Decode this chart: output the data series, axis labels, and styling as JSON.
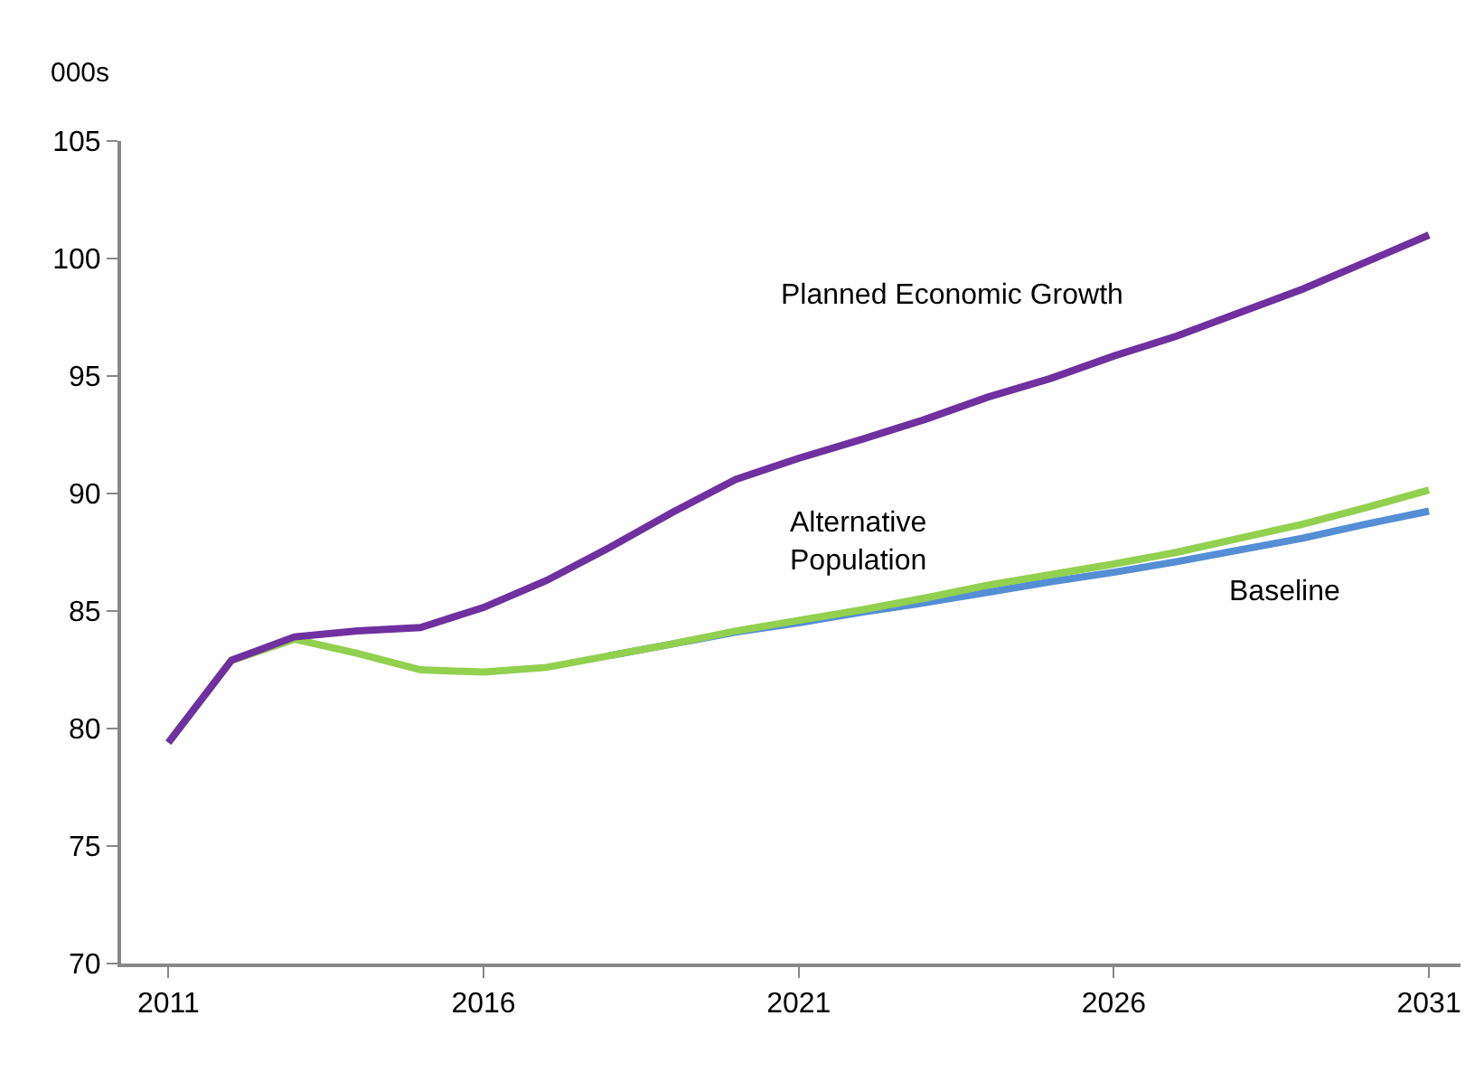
{
  "chart_data": {
    "type": "line",
    "ylabel": "000s",
    "x": [
      2011,
      2012,
      2013,
      2014,
      2015,
      2016,
      2017,
      2018,
      2019,
      2020,
      2021,
      2022,
      2023,
      2024,
      2025,
      2026,
      2027,
      2028,
      2029,
      2030,
      2031
    ],
    "series": [
      {
        "name": "Baseline",
        "color": "#558ed5",
        "values": [
          null,
          null,
          null,
          null,
          null,
          null,
          null,
          83.1,
          83.6,
          84.1,
          84.5,
          84.95,
          85.35,
          85.8,
          86.25,
          86.65,
          87.1,
          87.6,
          88.1,
          88.7,
          89.25
        ]
      },
      {
        "name": "Alternative Population",
        "color": "#92d050",
        "values": [
          79.4,
          82.9,
          83.8,
          83.2,
          82.5,
          82.4,
          82.6,
          83.1,
          83.6,
          84.15,
          84.6,
          85.05,
          85.55,
          86.1,
          86.55,
          87.0,
          87.5,
          88.1,
          88.7,
          89.4,
          90.15
        ]
      },
      {
        "name": "Planned Economic Growth",
        "color": "#7030a0",
        "values": [
          79.4,
          82.9,
          83.9,
          84.15,
          84.3,
          85.15,
          86.3,
          87.7,
          89.2,
          90.6,
          91.5,
          92.3,
          93.15,
          94.1,
          94.9,
          95.85,
          96.7,
          97.7,
          98.7,
          99.85,
          101.0
        ]
      }
    ],
    "xlim": [
      2010.25,
      2031.5
    ],
    "xticks": [
      2011,
      2016,
      2021,
      2026,
      2031
    ],
    "ylim": [
      70,
      105
    ],
    "yticks": [
      70,
      75,
      80,
      85,
      90,
      95,
      100,
      105
    ],
    "grid": false,
    "legend": false,
    "marker": "none",
    "line_style": "solid"
  }
}
